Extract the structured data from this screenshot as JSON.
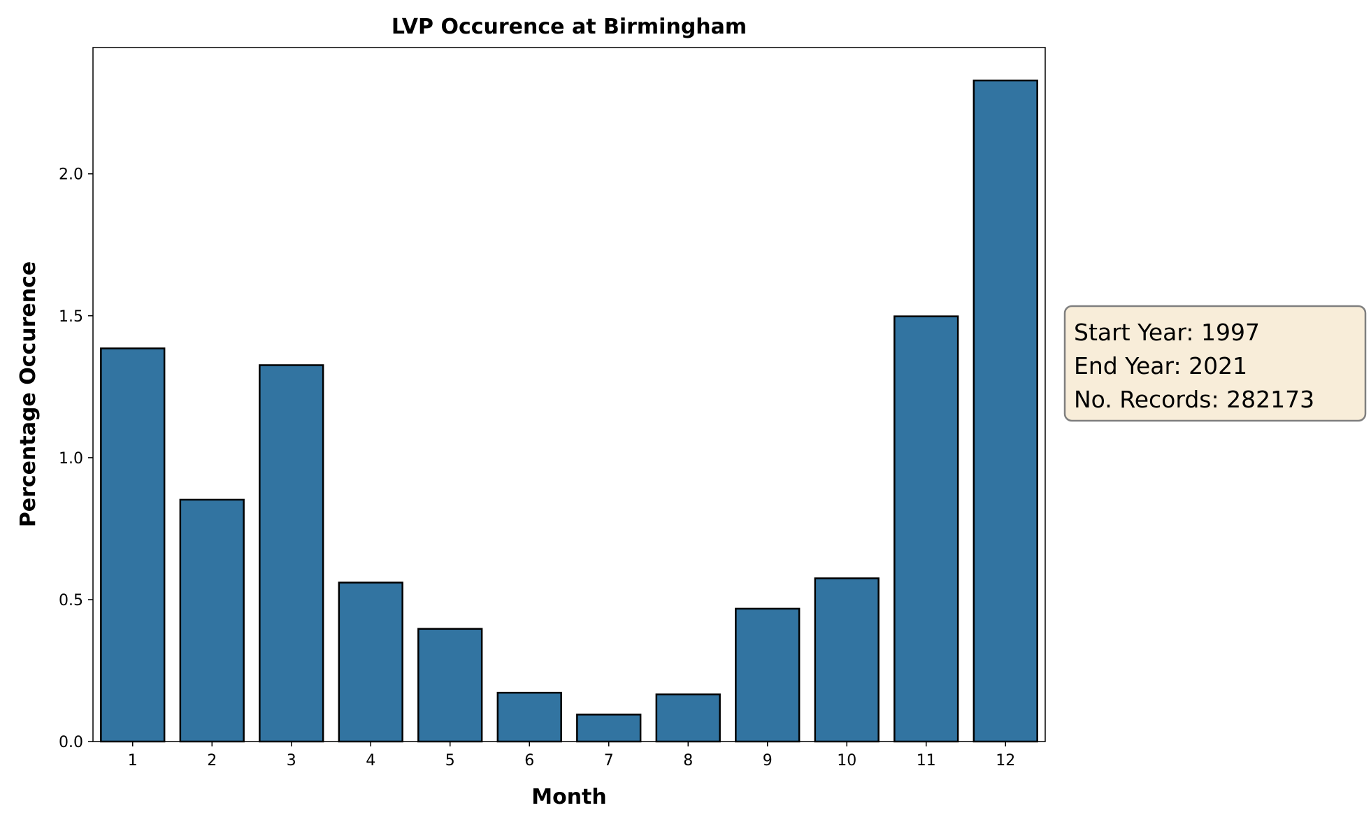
{
  "chart_data": {
    "type": "bar",
    "title": "LVP Occurence at Birmingham",
    "xlabel": "Month",
    "ylabel": "Percentage Occurence",
    "categories": [
      "1",
      "2",
      "3",
      "4",
      "5",
      "6",
      "7",
      "8",
      "9",
      "10",
      "11",
      "12"
    ],
    "values": [
      1.385,
      0.852,
      1.326,
      0.56,
      0.397,
      0.172,
      0.095,
      0.166,
      0.468,
      0.575,
      1.498,
      2.329
    ],
    "ylim": [
      0,
      2.445
    ],
    "yticks": [
      "0.0",
      "0.5",
      "1.0",
      "1.5",
      "2.0"
    ],
    "ytick_values": [
      0,
      0.5,
      1.0,
      1.5,
      2.0
    ],
    "grid": false,
    "bar_color": "#3274a1",
    "edge_color": "#000000"
  },
  "info_box": {
    "lines": [
      "Start Year: 1997",
      "End Year: 2021",
      "No. Records: 282173"
    ],
    "background": "#f8edd9"
  }
}
